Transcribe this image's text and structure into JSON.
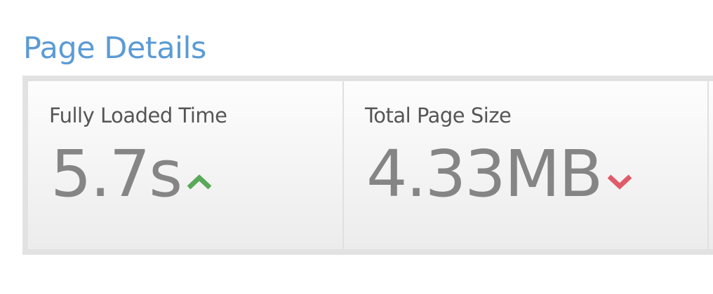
{
  "section_title": "Page Details",
  "metrics": [
    {
      "label": "Fully Loaded Time",
      "value": "5.7s",
      "trend": "up",
      "trend_color": "#5aa85a",
      "icon": "chevron-up-icon"
    },
    {
      "label": "Total Page Size",
      "value": "4.33MB",
      "trend": "down",
      "trend_color": "#e05a68",
      "icon": "chevron-down-icon"
    }
  ]
}
